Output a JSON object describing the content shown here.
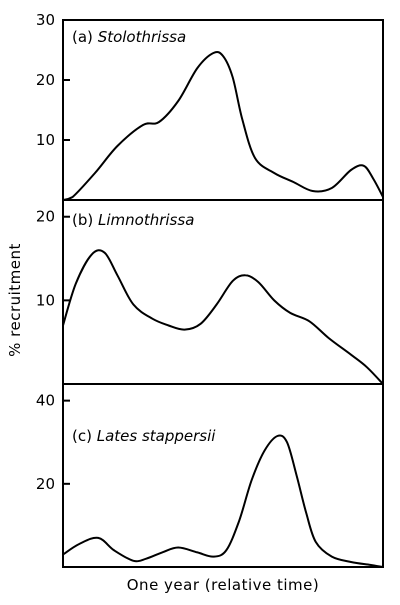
{
  "chart_data": {
    "type": "line",
    "xlabel": "One year (relative time)",
    "ylabel": "% recruitment",
    "panels": [
      {
        "label": "(a)",
        "species": "Stolothrissa",
        "ylim": [
          0,
          30
        ],
        "yticks": [
          10,
          20,
          30
        ],
        "x": [
          0,
          0.03,
          0.1,
          0.17,
          0.25,
          0.3,
          0.36,
          0.42,
          0.47,
          0.5,
          0.53,
          0.56,
          0.6,
          0.66,
          0.72,
          0.78,
          0.84,
          0.9,
          0.94,
          0.97,
          1.0
        ],
        "values": [
          0,
          0.5,
          4.5,
          9,
          12.5,
          13,
          16.5,
          22,
          24.5,
          24,
          20.5,
          13.5,
          7,
          4.5,
          3,
          1.5,
          2,
          5,
          5.7,
          3.5,
          0.5
        ]
      },
      {
        "label": "(b)",
        "species": "Limnothrissa",
        "ylim": [
          0,
          22
        ],
        "yticks": [
          10,
          20
        ],
        "x": [
          0,
          0.04,
          0.09,
          0.13,
          0.17,
          0.22,
          0.28,
          0.33,
          0.38,
          0.43,
          0.48,
          0.53,
          0.57,
          0.61,
          0.66,
          0.71,
          0.77,
          0.83,
          0.9,
          0.95,
          1.0
        ],
        "values": [
          7,
          12,
          15.5,
          15.7,
          13,
          9.5,
          7.8,
          7,
          6.5,
          7.2,
          9.5,
          12.3,
          13,
          12.2,
          10,
          8.5,
          7.5,
          5.5,
          3.5,
          2,
          0
        ]
      },
      {
        "label": "(c)",
        "species": "Lates stappersii",
        "ylim": [
          0,
          44
        ],
        "yticks": [
          20,
          40
        ],
        "x": [
          0,
          0.05,
          0.11,
          0.16,
          0.22,
          0.26,
          0.31,
          0.36,
          0.42,
          0.47,
          0.51,
          0.55,
          0.59,
          0.63,
          0.67,
          0.7,
          0.73,
          0.76,
          0.79,
          0.84,
          0.9,
          0.96,
          1.0
        ],
        "values": [
          3,
          5.5,
          7,
          4,
          1.5,
          2,
          3.5,
          4.7,
          3.5,
          2.5,
          4,
          11,
          21,
          28,
          31.5,
          30,
          22,
          13,
          6,
          2.5,
          1.2,
          0.5,
          0
        ]
      }
    ]
  }
}
